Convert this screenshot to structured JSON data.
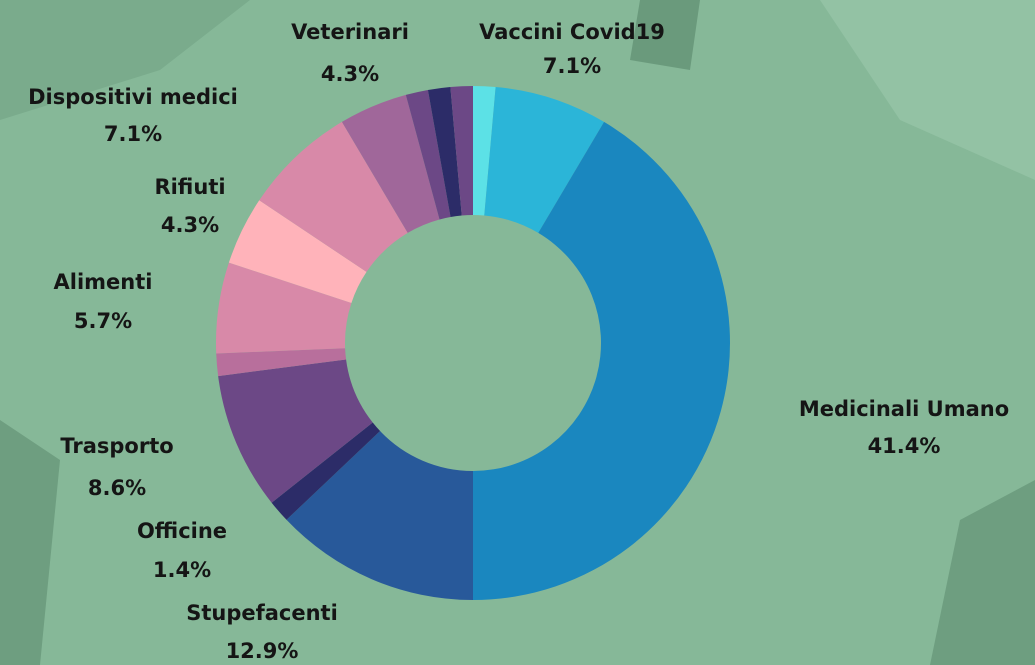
{
  "chart_data": {
    "type": "donut",
    "categories": [
      null,
      "Vaccini Covid19",
      "Medicinali Umano",
      "Stupefacenti",
      "Officine",
      "Trasporto",
      null,
      "Alimenti",
      "Rifiuti",
      "Dispositivi medici",
      "Veterinari",
      null,
      null,
      null
    ],
    "values": [
      1.4,
      7.1,
      41.4,
      12.9,
      1.4,
      8.6,
      1.4,
      5.7,
      4.3,
      7.1,
      4.3,
      1.4,
      1.4,
      1.4
    ],
    "value_labels": [
      null,
      "7.1%",
      "41.4%",
      "12.9%",
      "1.4%",
      "8.6%",
      null,
      "5.7%",
      "4.3%",
      "7.1%",
      "4.3%",
      null,
      null,
      null
    ],
    "colors": [
      "#5ce1e6",
      "#2bb5d8",
      "#1a87bf",
      "#28599a",
      "#2c2c68",
      "#6c4886",
      "#b86f9c",
      "#d889a8",
      "#ffb3ba",
      "#d889a8",
      "#a0679a",
      "#6c4886",
      "#2c2c68",
      "#6c4886"
    ]
  }
}
